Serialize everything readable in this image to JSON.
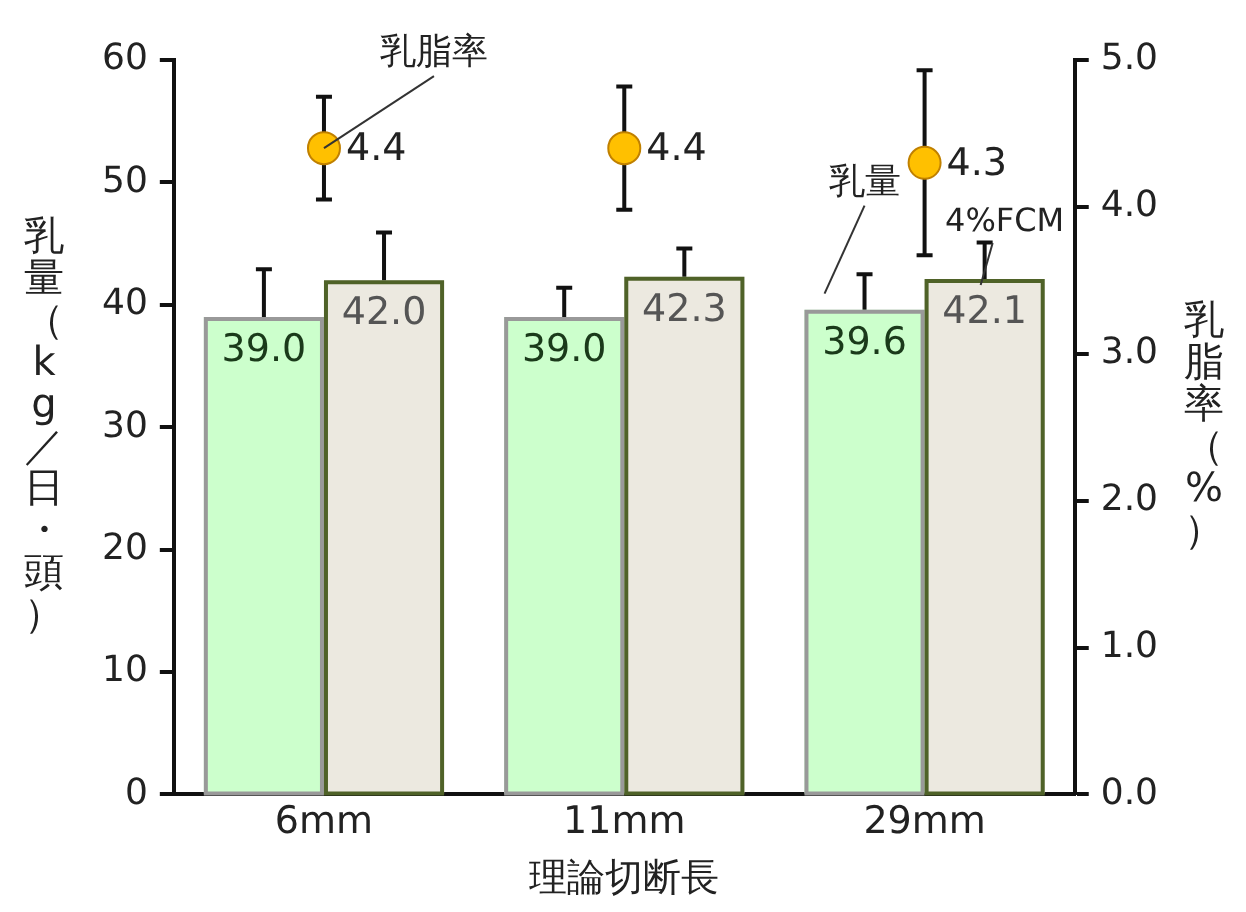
{
  "chart_data": {
    "type": "bar",
    "xlabel": "理論切断長",
    "ylabel": "乳量（kg／日・頭）",
    "y2label": "乳脂率（%）",
    "categories": [
      "6mm",
      "11mm",
      "29mm"
    ],
    "series": [
      {
        "name": "乳量",
        "color": "#ccffcc",
        "values": [
          39.0,
          39.0,
          39.6
        ],
        "value_labels": [
          "39.0",
          "39.0",
          "39.6"
        ],
        "errors": [
          3.9,
          2.4,
          2.9
        ]
      },
      {
        "name": "4%FCM",
        "color": "#ece9e0",
        "values": [
          42.0,
          42.3,
          42.1
        ],
        "value_labels": [
          "42.0",
          "42.3",
          "42.1"
        ],
        "errors": [
          3.9,
          2.3,
          3.0
        ]
      },
      {
        "name": "乳脂率",
        "type": "scatter",
        "axis": "y2",
        "color": "#ffc000",
        "values": [
          4.4,
          4.4,
          4.3
        ],
        "value_labels": [
          "4.4",
          "4.4",
          "4.3"
        ],
        "errors": [
          0.35,
          0.42,
          0.63
        ]
      }
    ],
    "ylim": [
      0,
      60
    ],
    "yticks": [
      0,
      10,
      20,
      30,
      40,
      50,
      60
    ],
    "y2lim": [
      0,
      5
    ],
    "y2ticks": [
      {
        "value": 0,
        "label": "0.0"
      },
      {
        "value": 1,
        "label": "1.0"
      },
      {
        "value": 2,
        "label": "2.0"
      },
      {
        "value": 3,
        "label": "3.0"
      },
      {
        "value": 4,
        "label": "4.0"
      },
      {
        "value": 5,
        "label": "5.0"
      }
    ],
    "grid": false,
    "marker": "circle"
  }
}
